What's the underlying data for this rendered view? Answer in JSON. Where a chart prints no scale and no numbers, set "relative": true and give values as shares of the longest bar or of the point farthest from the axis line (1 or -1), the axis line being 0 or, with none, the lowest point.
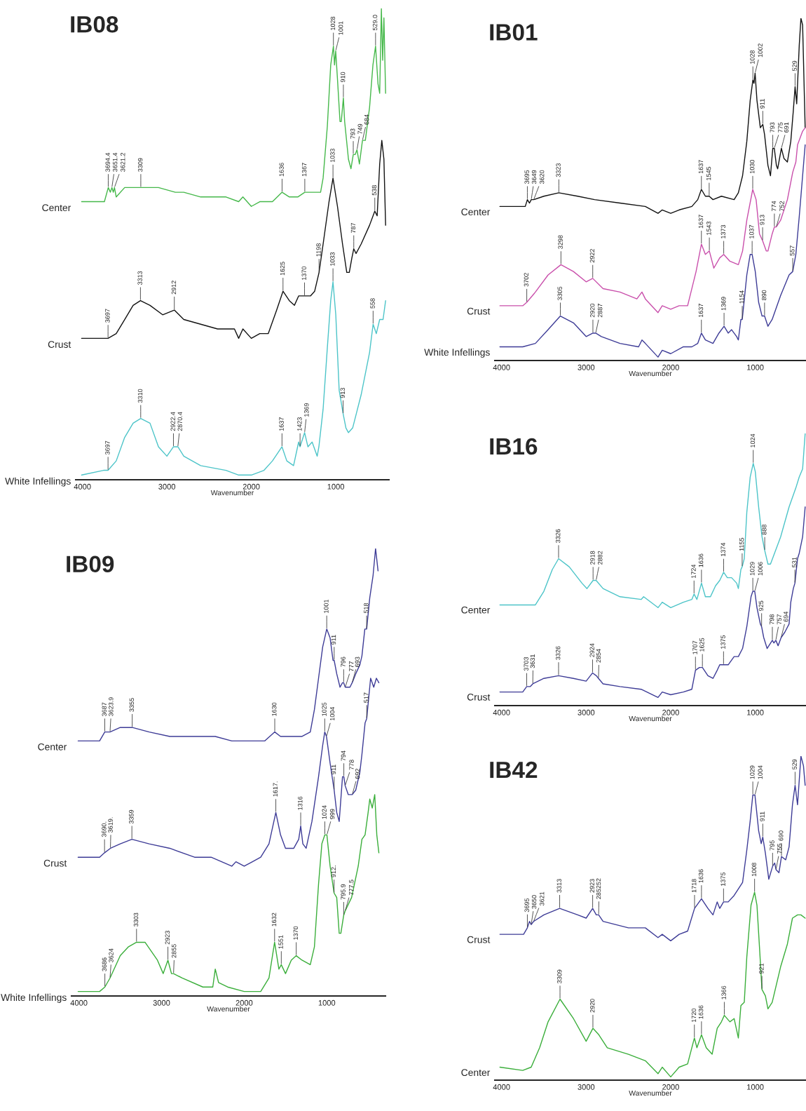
{
  "chart_data": [
    {
      "type": "line",
      "title": "IB08",
      "xlabel": "Wavenumber",
      "relative": true,
      "xlim": [
        4080,
        370
      ],
      "xticks": [
        4000,
        3000,
        2000,
        1000
      ],
      "series": [
        {
          "name": "Center",
          "color": "#45b84a",
          "x": [
            4010,
            3740,
            3694,
            3670,
            3651,
            3635,
            3621,
            3600,
            3500,
            3309,
            3100,
            2900,
            2800,
            2600,
            2300,
            2150,
            2100,
            2000,
            1900,
            1750,
            1636,
            1550,
            1450,
            1367,
            1250,
            1180,
            1150,
            1100,
            1060,
            1028,
            1015,
            1001,
            980,
            950,
            935,
            910,
            895,
            850,
            820,
            793,
            770,
            749,
            720,
            684,
            650,
            600,
            560,
            529,
            500,
            480,
            460,
            445,
            430,
            410
          ],
          "values": [
            0.59,
            0.59,
            0.62,
            0.61,
            0.62,
            0.61,
            0.62,
            0.6,
            0.62,
            0.62,
            0.62,
            0.61,
            0.61,
            0.6,
            0.6,
            0.59,
            0.6,
            0.58,
            0.59,
            0.59,
            0.61,
            0.6,
            0.6,
            0.61,
            0.61,
            0.61,
            0.64,
            0.75,
            0.88,
            0.92,
            0.88,
            0.91,
            0.85,
            0.76,
            0.76,
            0.81,
            0.76,
            0.68,
            0.66,
            0.69,
            0.69,
            0.7,
            0.67,
            0.72,
            0.72,
            0.79,
            0.88,
            0.92,
            0.84,
            0.82,
            1.0,
            0.89,
            0.98,
            0.82
          ]
        },
        {
          "name": "Crust",
          "color": "#111111",
          "x": [
            4010,
            3697,
            3600,
            3500,
            3400,
            3313,
            3200,
            3050,
            2912,
            2800,
            2600,
            2400,
            2200,
            2150,
            2100,
            2000,
            1900,
            1800,
            1700,
            1625,
            1550,
            1490,
            1440,
            1370,
            1300,
            1250,
            1198,
            1150,
            1080,
            1033,
            980,
            920,
            870,
            840,
            810,
            787,
            760,
            700,
            600,
            538,
            510,
            480,
            455,
            430,
            410
          ],
          "values": [
            0.3,
            0.3,
            0.31,
            0.34,
            0.37,
            0.38,
            0.37,
            0.35,
            0.36,
            0.34,
            0.33,
            0.32,
            0.32,
            0.3,
            0.32,
            0.3,
            0.31,
            0.31,
            0.36,
            0.4,
            0.38,
            0.37,
            0.39,
            0.39,
            0.39,
            0.4,
            0.44,
            0.5,
            0.59,
            0.64,
            0.58,
            0.5,
            0.44,
            0.44,
            0.47,
            0.49,
            0.48,
            0.5,
            0.54,
            0.57,
            0.56,
            0.67,
            0.72,
            0.68,
            0.54
          ]
        },
        {
          "name": "White Infellings",
          "color": "#4cc4c8",
          "x": [
            4010,
            3750,
            3697,
            3600,
            3500,
            3400,
            3310,
            3200,
            3100,
            3000,
            2922,
            2870,
            2800,
            2600,
            2300,
            2150,
            2000,
            1850,
            1750,
            1637,
            1580,
            1500,
            1440,
            1423,
            1369,
            1330,
            1280,
            1220,
            1200,
            1150,
            1100,
            1060,
            1033,
            1000,
            960,
            913,
            880,
            850,
            800,
            700,
            600,
            558,
            520,
            480,
            440,
            410
          ],
          "values": [
            0.01,
            0.02,
            0.02,
            0.04,
            0.09,
            0.12,
            0.13,
            0.12,
            0.07,
            0.05,
            0.07,
            0.07,
            0.05,
            0.03,
            0.02,
            0.01,
            0.01,
            0.02,
            0.04,
            0.07,
            0.04,
            0.03,
            0.08,
            0.07,
            0.1,
            0.07,
            0.08,
            0.05,
            0.07,
            0.15,
            0.28,
            0.38,
            0.42,
            0.35,
            0.19,
            0.14,
            0.11,
            0.1,
            0.11,
            0.18,
            0.27,
            0.33,
            0.31,
            0.34,
            0.34,
            0.38
          ]
        }
      ],
      "annotations": [
        {
          "text": "3694.4",
          "x": 3694.4,
          "y": 0.62
        },
        {
          "text": "3651.4",
          "x": 3651.4,
          "y": 0.62
        },
        {
          "text": "3621.2",
          "x": 3621.2,
          "y": 0.62
        },
        {
          "text": "3309",
          "x": 3309,
          "y": 0.62
        },
        {
          "text": "1636",
          "x": 1636,
          "y": 0.61
        },
        {
          "text": "1367",
          "x": 1367,
          "y": 0.61
        },
        {
          "text": "1028",
          "x": 1028,
          "y": 0.92
        },
        {
          "text": "1001",
          "x": 1001,
          "y": 0.91
        },
        {
          "text": "910",
          "x": 910,
          "y": 0.81
        },
        {
          "text": "793",
          "x": 793,
          "y": 0.69
        },
        {
          "text": "749",
          "x": 749,
          "y": 0.7
        },
        {
          "text": "684",
          "x": 684,
          "y": 0.72
        },
        {
          "text": "529.0",
          "x": 529.0,
          "y": 0.92
        },
        {
          "text": "3697",
          "x": 3697,
          "y": 0.3
        },
        {
          "text": "3313",
          "x": 3313,
          "y": 0.38
        },
        {
          "text": "2912",
          "x": 2912,
          "y": 0.36
        },
        {
          "text": "1625",
          "x": 1625,
          "y": 0.4
        },
        {
          "text": "1370",
          "x": 1370,
          "y": 0.39
        },
        {
          "text": "1198",
          "x": 1198,
          "y": 0.44
        },
        {
          "text": "1033",
          "x": 1033,
          "y": 0.64
        },
        {
          "text": "787",
          "x": 787,
          "y": 0.49
        },
        {
          "text": "538",
          "x": 538,
          "y": 0.57
        },
        {
          "text": "3697",
          "x": 3697,
          "y": 0.02
        },
        {
          "text": "3310",
          "x": 3310,
          "y": 0.13
        },
        {
          "text": "2922.4",
          "x": 2922.4,
          "y": 0.07
        },
        {
          "text": "2870.4",
          "x": 2870.4,
          "y": 0.07
        },
        {
          "text": "1637",
          "x": 1637,
          "y": 0.07
        },
        {
          "text": "1423",
          "x": 1423,
          "y": 0.07
        },
        {
          "text": "1369",
          "x": 1369,
          "y": 0.1
        },
        {
          "text": "1033",
          "x": 1033,
          "y": 0.42
        },
        {
          "text": "913",
          "x": 913,
          "y": 0.14
        },
        {
          "text": "558",
          "x": 558,
          "y": 0.33
        }
      ]
    },
    {
      "type": "line",
      "title": "IB01",
      "xlabel": "Wavenumber",
      "relative": true,
      "xlim": [
        4080,
        400
      ],
      "xticks": [
        4000,
        3000,
        2000,
        1000
      ],
      "series": [
        {
          "name": "Center",
          "color": "#111111",
          "x": [
            4020,
            3720,
            3695,
            3670,
            3649,
            3620,
            3500,
            3323,
            3100,
            2900,
            2600,
            2300,
            2150,
            2100,
            2000,
            1900,
            1750,
            1680,
            1637,
            1590,
            1545,
            1500,
            1400,
            1250,
            1200,
            1150,
            1100,
            1060,
            1028,
            1015,
            1002,
            980,
            940,
            911,
            890,
            850,
            820,
            793,
            775,
            750,
            735,
            691,
            660,
            620,
            580,
            550,
            529,
            510,
            480,
            460,
            440,
            410
          ],
          "values": [
            0.45,
            0.45,
            0.47,
            0.46,
            0.47,
            0.47,
            0.48,
            0.49,
            0.48,
            0.47,
            0.46,
            0.45,
            0.43,
            0.44,
            0.43,
            0.44,
            0.45,
            0.47,
            0.5,
            0.48,
            0.48,
            0.47,
            0.48,
            0.47,
            0.49,
            0.54,
            0.64,
            0.76,
            0.82,
            0.81,
            0.84,
            0.76,
            0.68,
            0.69,
            0.66,
            0.57,
            0.54,
            0.62,
            0.62,
            0.57,
            0.56,
            0.62,
            0.59,
            0.58,
            0.64,
            0.73,
            0.8,
            0.75,
            0.92,
            1.0,
            0.98,
            0.68
          ]
        },
        {
          "name": "Crust",
          "color": "#c94fab",
          "x": [
            4020,
            3750,
            3702,
            3600,
            3450,
            3298,
            3150,
            3000,
            2922,
            2800,
            2600,
            2400,
            2340,
            2300,
            2150,
            2100,
            2000,
            1900,
            1800,
            1700,
            1637,
            1590,
            1543,
            1490,
            1420,
            1373,
            1300,
            1200,
            1150,
            1100,
            1030,
            990,
            950,
            913,
            870,
            850,
            800,
            774,
            752,
            700,
            620,
            557,
            520,
            500,
            470,
            440,
            410
          ],
          "values": [
            0.16,
            0.16,
            0.17,
            0.2,
            0.25,
            0.28,
            0.26,
            0.23,
            0.24,
            0.21,
            0.2,
            0.18,
            0.2,
            0.18,
            0.14,
            0.16,
            0.15,
            0.16,
            0.16,
            0.26,
            0.34,
            0.31,
            0.32,
            0.27,
            0.3,
            0.31,
            0.29,
            0.28,
            0.32,
            0.41,
            0.5,
            0.47,
            0.37,
            0.35,
            0.32,
            0.32,
            0.37,
            0.39,
            0.39,
            0.41,
            0.47,
            0.55,
            0.58,
            0.63,
            0.65,
            0.67,
            0.68
          ]
        },
        {
          "name": "White Infellings",
          "color": "#3d3b96",
          "x": [
            4020,
            3750,
            3600,
            3450,
            3305,
            3150,
            3000,
            2920,
            2887,
            2820,
            2600,
            2380,
            2340,
            2300,
            2150,
            2100,
            2000,
            1850,
            1750,
            1680,
            1637,
            1590,
            1500,
            1430,
            1369,
            1320,
            1280,
            1220,
            1200,
            1170,
            1154,
            1100,
            1060,
            1037,
            1000,
            960,
            920,
            890,
            850,
            800,
            700,
            600,
            557,
            520,
            480,
            440,
            410
          ],
          "values": [
            0.04,
            0.04,
            0.05,
            0.09,
            0.13,
            0.11,
            0.07,
            0.08,
            0.08,
            0.07,
            0.05,
            0.04,
            0.06,
            0.05,
            0.01,
            0.03,
            0.02,
            0.04,
            0.04,
            0.05,
            0.08,
            0.06,
            0.05,
            0.08,
            0.1,
            0.08,
            0.09,
            0.07,
            0.06,
            0.12,
            0.12,
            0.25,
            0.31,
            0.31,
            0.26,
            0.17,
            0.13,
            0.13,
            0.1,
            0.12,
            0.19,
            0.25,
            0.26,
            0.31,
            0.42,
            0.54,
            0.63
          ]
        }
      ],
      "annotations": [
        {
          "text": "3695",
          "x": 3695,
          "y": 0.47
        },
        {
          "text": "3649",
          "x": 3649,
          "y": 0.47
        },
        {
          "text": "3620",
          "x": 3620,
          "y": 0.47
        },
        {
          "text": "3323",
          "x": 3323,
          "y": 0.49
        },
        {
          "text": "1637",
          "x": 1637,
          "y": 0.5
        },
        {
          "text": "1545",
          "x": 1545,
          "y": 0.48
        },
        {
          "text": "1028",
          "x": 1028,
          "y": 0.82
        },
        {
          "text": "1002",
          "x": 1002,
          "y": 0.84
        },
        {
          "text": "911",
          "x": 911,
          "y": 0.69
        },
        {
          "text": "793",
          "x": 793,
          "y": 0.62
        },
        {
          "text": "775",
          "x": 775,
          "y": 0.62
        },
        {
          "text": "691",
          "x": 691,
          "y": 0.62
        },
        {
          "text": "529",
          "x": 529,
          "y": 0.8
        },
        {
          "text": "3702",
          "x": 3702,
          "y": 0.17
        },
        {
          "text": "3298",
          "x": 3298,
          "y": 0.28
        },
        {
          "text": "2922",
          "x": 2922,
          "y": 0.24
        },
        {
          "text": "1637",
          "x": 1637,
          "y": 0.34
        },
        {
          "text": "1543",
          "x": 1543,
          "y": 0.32
        },
        {
          "text": "1373",
          "x": 1373,
          "y": 0.31
        },
        {
          "text": "1030",
          "x": 1030,
          "y": 0.5
        },
        {
          "text": "913",
          "x": 913,
          "y": 0.35
        },
        {
          "text": "774",
          "x": 774,
          "y": 0.39
        },
        {
          "text": "752",
          "x": 752,
          "y": 0.39
        },
        {
          "text": "3305",
          "x": 3305,
          "y": 0.13
        },
        {
          "text": "2920",
          "x": 2920,
          "y": 0.08
        },
        {
          "text": "2887",
          "x": 2887,
          "y": 0.08
        },
        {
          "text": "1637",
          "x": 1637,
          "y": 0.08
        },
        {
          "text": "1369",
          "x": 1369,
          "y": 0.1
        },
        {
          "text": "1154",
          "x": 1154,
          "y": 0.12
        },
        {
          "text": "1037",
          "x": 1037,
          "y": 0.31
        },
        {
          "text": "890",
          "x": 890,
          "y": 0.13
        },
        {
          "text": "557",
          "x": 557,
          "y": 0.26
        }
      ]
    },
    {
      "type": "line",
      "title": "IB09",
      "xlabel": "Wavenumber",
      "relative": true,
      "xlim": [
        4090,
        290
      ],
      "xticks": [
        4000,
        3000,
        2000,
        1000
      ],
      "series": [
        {
          "name": "Center",
          "color": "#3d3b96",
          "x": [
            4010,
            3750,
            3687,
            3650,
            3623.9,
            3500,
            3355,
            3150,
            2900,
            2600,
            2350,
            2150,
            2050,
            1900,
            1750,
            1630,
            1560,
            1450,
            1300,
            1200,
            1150,
            1100,
            1050,
            1001,
            960,
            925,
            911,
            880,
            840,
            810,
            796,
            777,
            740,
            720,
            693,
            650,
            600,
            575,
            540,
            518,
            480,
            440,
            410,
            380
          ],
          "values": [
            0.57,
            0.57,
            0.59,
            0.59,
            0.59,
            0.6,
            0.6,
            0.59,
            0.58,
            0.58,
            0.58,
            0.57,
            0.57,
            0.57,
            0.57,
            0.59,
            0.58,
            0.58,
            0.58,
            0.59,
            0.64,
            0.71,
            0.78,
            0.82,
            0.8,
            0.75,
            0.75,
            0.72,
            0.69,
            0.7,
            0.7,
            0.69,
            0.69,
            0.69,
            0.7,
            0.72,
            0.74,
            0.76,
            0.82,
            0.82,
            0.89,
            0.94,
            1.0,
            0.95
          ]
        },
        {
          "name": "Crust",
          "color": "#3d3b96",
          "x": [
            4010,
            3750,
            3690,
            3619,
            3500,
            3359,
            3150,
            2900,
            2600,
            2400,
            2150,
            2100,
            2000,
            1900,
            1800,
            1700,
            1617,
            1560,
            1500,
            1400,
            1340,
            1316,
            1290,
            1250,
            1180,
            1100,
            1050,
            1025,
            1004,
            960,
            911,
            880,
            850,
            810,
            794,
            778,
            740,
            692,
            650,
            600,
            575,
            537,
            517,
            470,
            432,
            400,
            370
          ],
          "values": [
            0.31,
            0.31,
            0.32,
            0.33,
            0.34,
            0.35,
            0.34,
            0.33,
            0.31,
            0.31,
            0.29,
            0.3,
            0.29,
            0.3,
            0.31,
            0.34,
            0.41,
            0.36,
            0.33,
            0.33,
            0.35,
            0.38,
            0.34,
            0.33,
            0.39,
            0.49,
            0.56,
            0.59,
            0.58,
            0.52,
            0.46,
            0.41,
            0.39,
            0.49,
            0.49,
            0.47,
            0.45,
            0.45,
            0.46,
            0.5,
            0.54,
            0.61,
            0.62,
            0.71,
            0.69,
            0.71,
            0.7
          ]
        },
        {
          "name": "White Infellings",
          "color": "#3aae3a",
          "x": [
            4010,
            3750,
            3686,
            3624,
            3500,
            3400,
            3303,
            3200,
            3050,
            2980,
            2923,
            2880,
            2855,
            2750,
            2500,
            2380,
            2350,
            2310,
            2200,
            2000,
            1800,
            1700,
            1632,
            1580,
            1551,
            1500,
            1430,
            1370,
            1300,
            1200,
            1150,
            1100,
            1060,
            1024,
            999,
            960,
            912,
            880,
            850,
            830,
            796,
            778,
            700,
            620,
            575,
            537,
            500,
            480,
            450,
            420,
            395,
            370
          ],
          "values": [
            0.01,
            0.01,
            0.02,
            0.04,
            0.09,
            0.11,
            0.12,
            0.12,
            0.08,
            0.05,
            0.08,
            0.05,
            0.05,
            0.04,
            0.02,
            0.02,
            0.06,
            0.03,
            0.02,
            0.01,
            0.01,
            0.04,
            0.12,
            0.06,
            0.07,
            0.05,
            0.08,
            0.09,
            0.08,
            0.07,
            0.11,
            0.25,
            0.34,
            0.36,
            0.36,
            0.29,
            0.23,
            0.22,
            0.14,
            0.14,
            0.18,
            0.19,
            0.22,
            0.29,
            0.35,
            0.36,
            0.41,
            0.44,
            0.42,
            0.45,
            0.36,
            0.32
          ]
        }
      ],
      "annotations": [
        {
          "text": "3687",
          "x": 3687,
          "y": 0.59
        },
        {
          "text": "3623.9",
          "x": 3623.9,
          "y": 0.59
        },
        {
          "text": "3355",
          "x": 3355,
          "y": 0.6
        },
        {
          "text": "1630",
          "x": 1630,
          "y": 0.59
        },
        {
          "text": "1001",
          "x": 1001,
          "y": 0.82
        },
        {
          "text": "911",
          "x": 911,
          "y": 0.75
        },
        {
          "text": "796",
          "x": 796,
          "y": 0.7
        },
        {
          "text": "777",
          "x": 777,
          "y": 0.69
        },
        {
          "text": "693",
          "x": 693,
          "y": 0.7
        },
        {
          "text": "518",
          "x": 518,
          "y": 0.82
        },
        {
          "text": "3690.",
          "x": 3690,
          "y": 0.32
        },
        {
          "text": "3619.",
          "x": 3619,
          "y": 0.33
        },
        {
          "text": "3359",
          "x": 3359,
          "y": 0.35
        },
        {
          "text": "1617.",
          "x": 1617,
          "y": 0.41
        },
        {
          "text": "1316",
          "x": 1316,
          "y": 0.38
        },
        {
          "text": "1025",
          "x": 1025,
          "y": 0.59
        },
        {
          "text": "1004",
          "x": 1004,
          "y": 0.58
        },
        {
          "text": "911",
          "x": 911,
          "y": 0.46
        },
        {
          "text": "794",
          "x": 794,
          "y": 0.49
        },
        {
          "text": "778",
          "x": 778,
          "y": 0.47
        },
        {
          "text": "692",
          "x": 692,
          "y": 0.45
        },
        {
          "text": "517",
          "x": 517,
          "y": 0.62
        },
        {
          "text": "3686",
          "x": 3686,
          "y": 0.02
        },
        {
          "text": "3624",
          "x": 3624,
          "y": 0.04
        },
        {
          "text": "3303",
          "x": 3303,
          "y": 0.12
        },
        {
          "text": "2923",
          "x": 2923,
          "y": 0.08
        },
        {
          "text": "2855",
          "x": 2855,
          "y": 0.05
        },
        {
          "text": "1632",
          "x": 1632,
          "y": 0.12
        },
        {
          "text": "1551",
          "x": 1551,
          "y": 0.07
        },
        {
          "text": "1370",
          "x": 1370,
          "y": 0.09
        },
        {
          "text": "1024",
          "x": 1024,
          "y": 0.36
        },
        {
          "text": "999",
          "x": 999,
          "y": 0.36
        },
        {
          "text": "912.",
          "x": 912,
          "y": 0.23
        },
        {
          "text": "795.9",
          "x": 795.9,
          "y": 0.18
        },
        {
          "text": "777.5",
          "x": 777.5,
          "y": 0.19
        }
      ]
    },
    {
      "type": "line",
      "title": "IB16",
      "xlabel": "Wavenumber",
      "relative": true,
      "xlim": [
        4080,
        400
      ],
      "xticks": [
        4000,
        3000,
        2000,
        1000
      ],
      "series": [
        {
          "name": "Center",
          "color": "#4cc4c8",
          "x": [
            4020,
            3600,
            3500,
            3400,
            3326,
            3200,
            3050,
            2990,
            2918,
            2882,
            2800,
            2600,
            2350,
            2320,
            2150,
            2100,
            2000,
            1850,
            1750,
            1724,
            1690,
            1636,
            1590,
            1530,
            1470,
            1420,
            1374,
            1330,
            1280,
            1220,
            1200,
            1170,
            1155,
            1130,
            1100,
            1060,
            1024,
            1000,
            960,
            920,
            888,
            850,
            820,
            700,
            600,
            520,
            480,
            440,
            410
          ],
          "values": [
            0.37,
            0.37,
            0.42,
            0.5,
            0.54,
            0.51,
            0.45,
            0.43,
            0.46,
            0.46,
            0.43,
            0.4,
            0.39,
            0.4,
            0.36,
            0.38,
            0.36,
            0.38,
            0.39,
            0.41,
            0.39,
            0.45,
            0.4,
            0.4,
            0.44,
            0.46,
            0.49,
            0.47,
            0.47,
            0.45,
            0.43,
            0.5,
            0.51,
            0.54,
            0.71,
            0.84,
            0.89,
            0.86,
            0.73,
            0.62,
            0.57,
            0.52,
            0.52,
            0.62,
            0.73,
            0.8,
            0.84,
            0.87,
            1.0
          ]
        },
        {
          "name": "Crust",
          "color": "#3d3b96",
          "x": [
            4020,
            3750,
            3703,
            3660,
            3631,
            3500,
            3326,
            3150,
            3000,
            2924,
            2880,
            2854,
            2800,
            2600,
            2350,
            2150,
            2100,
            2000,
            1850,
            1750,
            1707,
            1660,
            1625,
            1560,
            1500,
            1450,
            1420,
            1375,
            1320,
            1250,
            1200,
            1150,
            1100,
            1050,
            1029,
            1006,
            980,
            940,
            925,
            900,
            860,
            798,
            780,
            757,
            730,
            694,
            650,
            600,
            580,
            550,
            531,
            500,
            480,
            440,
            410
          ],
          "values": [
            0.05,
            0.05,
            0.07,
            0.07,
            0.08,
            0.1,
            0.11,
            0.1,
            0.09,
            0.12,
            0.11,
            0.1,
            0.08,
            0.07,
            0.06,
            0.03,
            0.05,
            0.04,
            0.05,
            0.06,
            0.13,
            0.14,
            0.14,
            0.11,
            0.1,
            0.13,
            0.15,
            0.15,
            0.15,
            0.18,
            0.18,
            0.21,
            0.29,
            0.4,
            0.42,
            0.42,
            0.36,
            0.3,
            0.29,
            0.25,
            0.21,
            0.24,
            0.23,
            0.24,
            0.22,
            0.25,
            0.27,
            0.3,
            0.38,
            0.43,
            0.45,
            0.54,
            0.56,
            0.62,
            0.73
          ]
        }
      ],
      "annotations": [
        {
          "text": "3326",
          "x": 3326,
          "y": 0.54
        },
        {
          "text": "2918",
          "x": 2918,
          "y": 0.46
        },
        {
          "text": "2882",
          "x": 2882,
          "y": 0.46
        },
        {
          "text": "1724",
          "x": 1724,
          "y": 0.41
        },
        {
          "text": "1636",
          "x": 1636,
          "y": 0.45
        },
        {
          "text": "1374",
          "x": 1374,
          "y": 0.49
        },
        {
          "text": "1155",
          "x": 1155,
          "y": 0.51
        },
        {
          "text": "1024",
          "x": 1024,
          "y": 0.89
        },
        {
          "text": "888",
          "x": 888,
          "y": 0.57
        },
        {
          "text": "3703",
          "x": 3703,
          "y": 0.07
        },
        {
          "text": "3631",
          "x": 3631,
          "y": 0.08
        },
        {
          "text": "3326",
          "x": 3326,
          "y": 0.11
        },
        {
          "text": "2924",
          "x": 2924,
          "y": 0.12
        },
        {
          "text": "2854",
          "x": 2854,
          "y": 0.1
        },
        {
          "text": "1707",
          "x": 1707,
          "y": 0.13
        },
        {
          "text": "1625",
          "x": 1625,
          "y": 0.14
        },
        {
          "text": "1375",
          "x": 1375,
          "y": 0.15
        },
        {
          "text": "1029",
          "x": 1029,
          "y": 0.42
        },
        {
          "text": "1006",
          "x": 1006,
          "y": 0.42
        },
        {
          "text": "925",
          "x": 925,
          "y": 0.29
        },
        {
          "text": "798",
          "x": 798,
          "y": 0.24
        },
        {
          "text": "757",
          "x": 757,
          "y": 0.24
        },
        {
          "text": "694",
          "x": 694,
          "y": 0.25
        },
        {
          "text": "531",
          "x": 531,
          "y": 0.45
        }
      ]
    },
    {
      "type": "line",
      "title": "IB42",
      "xlabel": "Wavenumber",
      "relative": true,
      "xlim": [
        4080,
        400
      ],
      "xticks": [
        4000,
        3000,
        2000,
        1000
      ],
      "series": [
        {
          "name": "Crust",
          "color": "#3d3b96",
          "x": [
            4020,
            3740,
            3695,
            3670,
            3650,
            3621,
            3500,
            3313,
            3100,
            3000,
            2923,
            2880,
            2852,
            2800,
            2500,
            2300,
            2150,
            2100,
            2000,
            1900,
            1800,
            1718,
            1636,
            1560,
            1500,
            1450,
            1420,
            1375,
            1320,
            1250,
            1200,
            1150,
            1100,
            1060,
            1029,
            1004,
            960,
            930,
            911,
            880,
            840,
            795,
            770,
            755,
            720,
            690,
            640,
            600,
            560,
            529,
            500,
            460,
            430,
            410
          ],
          "values": [
            0.45,
            0.45,
            0.47,
            0.49,
            0.48,
            0.49,
            0.51,
            0.53,
            0.51,
            0.5,
            0.53,
            0.51,
            0.51,
            0.49,
            0.47,
            0.47,
            0.44,
            0.45,
            0.43,
            0.45,
            0.46,
            0.53,
            0.56,
            0.53,
            0.51,
            0.55,
            0.53,
            0.55,
            0.55,
            0.57,
            0.59,
            0.61,
            0.71,
            0.8,
            0.88,
            0.88,
            0.77,
            0.73,
            0.75,
            0.7,
            0.62,
            0.66,
            0.67,
            0.65,
            0.64,
            0.69,
            0.68,
            0.72,
            0.85,
            0.91,
            0.85,
            1.0,
            0.97,
            0.91
          ]
        },
        {
          "name": "Center",
          "color": "#3aae3a",
          "x": [
            4020,
            3750,
            3650,
            3550,
            3450,
            3309,
            3150,
            3000,
            2920,
            2850,
            2750,
            2500,
            2300,
            2150,
            2100,
            2000,
            1900,
            1800,
            1720,
            1690,
            1636,
            1580,
            1510,
            1450,
            1400,
            1366,
            1300,
            1250,
            1200,
            1170,
            1130,
            1100,
            1050,
            1008,
            980,
            950,
            921,
            880,
            850,
            800,
            700,
            620,
            560,
            500,
            460,
            410
          ],
          "values": [
            0.04,
            0.03,
            0.04,
            0.1,
            0.18,
            0.25,
            0.19,
            0.12,
            0.16,
            0.14,
            0.1,
            0.08,
            0.06,
            0.02,
            0.04,
            0.01,
            0.04,
            0.05,
            0.13,
            0.1,
            0.14,
            0.1,
            0.08,
            0.16,
            0.18,
            0.2,
            0.18,
            0.19,
            0.13,
            0.23,
            0.24,
            0.38,
            0.54,
            0.58,
            0.54,
            0.41,
            0.28,
            0.26,
            0.22,
            0.24,
            0.35,
            0.42,
            0.5,
            0.51,
            0.51,
            0.5
          ]
        }
      ],
      "annotations": [
        {
          "text": "3695",
          "x": 3695,
          "y": 0.47
        },
        {
          "text": "3650",
          "x": 3650,
          "y": 0.48
        },
        {
          "text": "3621",
          "x": 3621,
          "y": 0.49
        },
        {
          "text": "3313",
          "x": 3313,
          "y": 0.53
        },
        {
          "text": "2923",
          "x": 2923,
          "y": 0.53
        },
        {
          "text": "285252",
          "x": 2852,
          "y": 0.51
        },
        {
          "text": "1718",
          "x": 1718,
          "y": 0.53
        },
        {
          "text": "1636",
          "x": 1636,
          "y": 0.56
        },
        {
          "text": "1375",
          "x": 1375,
          "y": 0.55
        },
        {
          "text": "1029",
          "x": 1029,
          "y": 0.88
        },
        {
          "text": "1004",
          "x": 1004,
          "y": 0.88
        },
        {
          "text": "911",
          "x": 911,
          "y": 0.75
        },
        {
          "text": "795",
          "x": 795,
          "y": 0.66
        },
        {
          "text": "755",
          "x": 755,
          "y": 0.65
        },
        {
          "text": "690",
          "x": 690,
          "y": 0.69
        },
        {
          "text": "529",
          "x": 529,
          "y": 0.91
        },
        {
          "text": "3309",
          "x": 3309,
          "y": 0.25
        },
        {
          "text": "2920",
          "x": 2920,
          "y": 0.16
        },
        {
          "text": "1720",
          "x": 1720,
          "y": 0.13
        },
        {
          "text": "1636",
          "x": 1636,
          "y": 0.14
        },
        {
          "text": "1366",
          "x": 1366,
          "y": 0.2
        },
        {
          "text": "1008",
          "x": 1008,
          "y": 0.58
        },
        {
          "text": "921",
          "x": 921,
          "y": 0.28
        }
      ]
    }
  ]
}
